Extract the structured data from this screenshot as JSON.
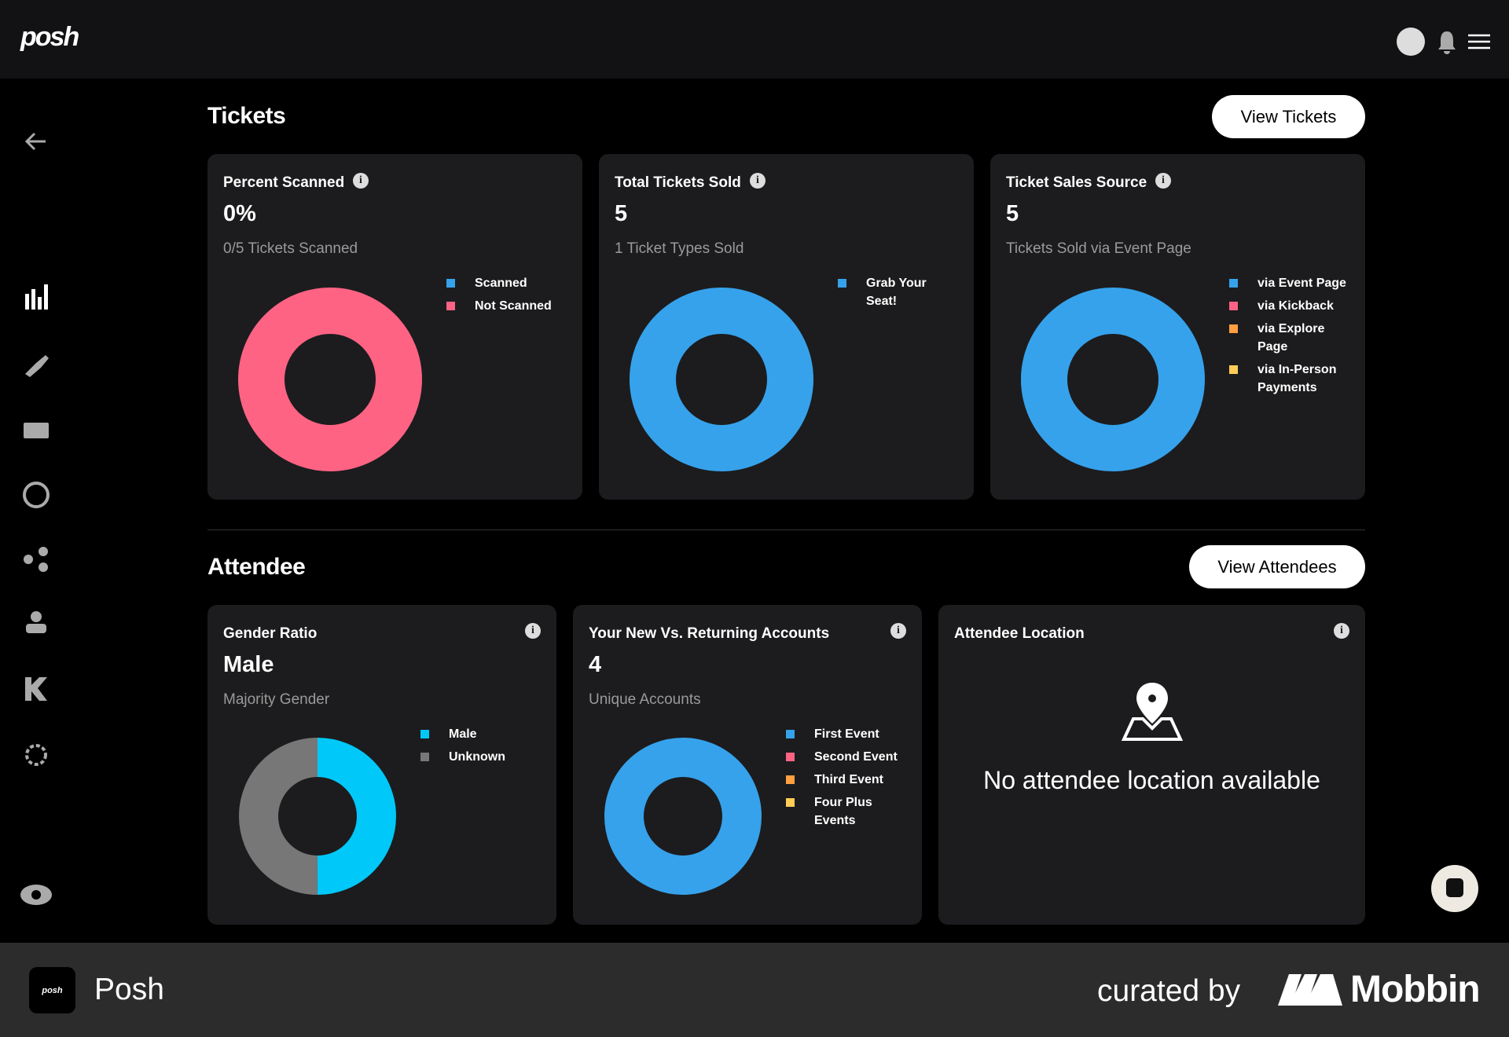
{
  "header": {
    "logo": "posh"
  },
  "sections": [
    {
      "title": "Tickets",
      "button": "View Tickets",
      "cards": [
        {
          "title": "Percent Scanned",
          "value": "0%",
          "subtitle": "0/5 Tickets Scanned",
          "chart": {
            "type": "donut",
            "categories": [
              "Scanned",
              "Not Scanned"
            ],
            "values": [
              0,
              5
            ],
            "colors": [
              "#36a2eb",
              "#ff6384"
            ]
          }
        },
        {
          "title": "Total Tickets Sold",
          "value": "5",
          "subtitle": "1 Ticket Types Sold",
          "chart": {
            "type": "donut",
            "categories": [
              "Grab Your Seat!"
            ],
            "values": [
              5
            ],
            "colors": [
              "#36a2eb"
            ]
          }
        },
        {
          "title": "Ticket Sales Source",
          "value": "5",
          "subtitle": "Tickets Sold via Event Page",
          "chart": {
            "type": "donut",
            "categories": [
              "via Event Page",
              "via Kickback",
              "via Explore Page",
              "via In-Person Payments"
            ],
            "values": [
              5,
              0,
              0,
              0
            ],
            "colors": [
              "#36a2eb",
              "#ff6384",
              "#ff9f40",
              "#ffcd56"
            ]
          }
        }
      ]
    },
    {
      "title": "Attendee",
      "button": "View Attendees",
      "cards": [
        {
          "title": "Gender Ratio",
          "value": "Male",
          "subtitle": "Majority Gender",
          "chart": {
            "type": "donut",
            "categories": [
              "Male",
              "Unknown"
            ],
            "values": [
              50,
              50
            ],
            "colors": [
              "#00c8f8",
              "#777777"
            ]
          }
        },
        {
          "title": "Your New Vs. Returning Accounts",
          "value": "4",
          "subtitle": "Unique Accounts",
          "chart": {
            "type": "donut",
            "categories": [
              "First Event",
              "Second Event",
              "Third Event",
              "Four Plus Events"
            ],
            "values": [
              4,
              0,
              0,
              0
            ],
            "colors": [
              "#36a2eb",
              "#ff6384",
              "#ff9f40",
              "#ffcd56"
            ]
          }
        },
        {
          "title": "Attendee Location",
          "message": "No attendee location available"
        }
      ]
    }
  ],
  "footer": {
    "app": "Posh",
    "app_icon": "posh",
    "curated": "curated by",
    "brand": "Mobbin"
  }
}
